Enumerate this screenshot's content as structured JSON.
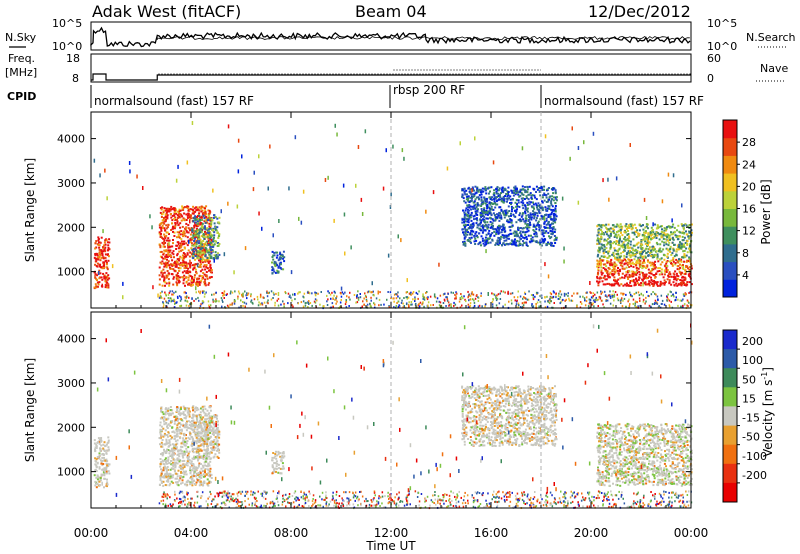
{
  "header": {
    "station": "Adak West (fitACF)",
    "beam": "Beam 04",
    "date": "12/Dec/2012"
  },
  "chart_data": [
    {
      "type": "line",
      "panel": "noise",
      "ylabel_left": "N.Sky",
      "ylabel_right": "N.Search",
      "left_ticks": [
        "10^5",
        "10^0"
      ],
      "right_ticks": [
        "10^5",
        "10^0"
      ]
    },
    {
      "type": "line",
      "panel": "frequency",
      "ylabel_left_line1": "Freq.",
      "ylabel_left_line2": "[MHz]",
      "ylabel_right": "Nave",
      "left_ticks": [
        "18",
        "8"
      ],
      "right_ticks": [
        "60",
        "0"
      ]
    },
    {
      "type": "table",
      "panel": "cpid",
      "label": "CPID",
      "segments": [
        {
          "label": "normalsound (fast) 157 RF",
          "start_hour": 0,
          "end_hour": 12
        },
        {
          "label": "rbsp 200 RF",
          "start_hour": 12,
          "end_hour": 18
        },
        {
          "label": "normalsound (fast) 157 RF",
          "start_hour": 18,
          "end_hour": 24
        }
      ]
    },
    {
      "type": "heatmap",
      "panel": "power",
      "ylabel": "Slant Range [km]",
      "yticks": [
        1000,
        2000,
        3000,
        4000
      ],
      "ylim": [
        180,
        4600
      ],
      "xlim": [
        0,
        24
      ],
      "colorbar_label": "Power [dB]",
      "colorbar_ticks": [
        4,
        8,
        12,
        16,
        20,
        24,
        28
      ],
      "colorbar_range": [
        0,
        32
      ],
      "colors": [
        "#0022dd",
        "#2a4fc0",
        "#2f6d8e",
        "#3f8f5e",
        "#78b83c",
        "#bcd23a",
        "#f0c020",
        "#f08a10",
        "#e84810",
        "#e81010"
      ],
      "clusters": [
        {
          "t0": 0.1,
          "t1": 0.7,
          "r0": 650,
          "r1": 1800,
          "level": 0.95
        },
        {
          "t0": 2.7,
          "t1": 4.8,
          "r0": 700,
          "r1": 2500,
          "level": 0.9
        },
        {
          "t0": 4.0,
          "t1": 5.1,
          "r0": 1300,
          "r1": 2300,
          "level": 0.35
        },
        {
          "t0": 7.2,
          "t1": 7.7,
          "r0": 980,
          "r1": 1480,
          "level": 0.25
        },
        {
          "t0": 14.8,
          "t1": 18.6,
          "r0": 1600,
          "r1": 2950,
          "level": 0.15
        },
        {
          "t0": 20.2,
          "t1": 24.0,
          "r0": 700,
          "r1": 2100,
          "level": 0.8
        }
      ]
    },
    {
      "type": "heatmap",
      "panel": "velocity",
      "ylabel": "Slant Range [km]",
      "yticks": [
        1000,
        2000,
        3000,
        4000
      ],
      "ylim": [
        180,
        4600
      ],
      "xlim": [
        0,
        24
      ],
      "colorbar_label_main": "Velocity [m s",
      "colorbar_label_sup": "-1",
      "colorbar_label_end": "]",
      "colorbar_ticks": [
        200,
        100,
        50,
        15,
        -15,
        -50,
        -100,
        -200
      ],
      "colors": [
        "#1a2acc",
        "#2c5aa8",
        "#3d8a5a",
        "#7cc440",
        "#c8c8c0",
        "#e8a030",
        "#f07010",
        "#e83010",
        "#e80000"
      ]
    }
  ],
  "time_axis": {
    "label": "Time UT",
    "ticks": [
      "00:00",
      "04:00",
      "08:00",
      "12:00",
      "16:00",
      "20:00",
      "00:00"
    ]
  }
}
